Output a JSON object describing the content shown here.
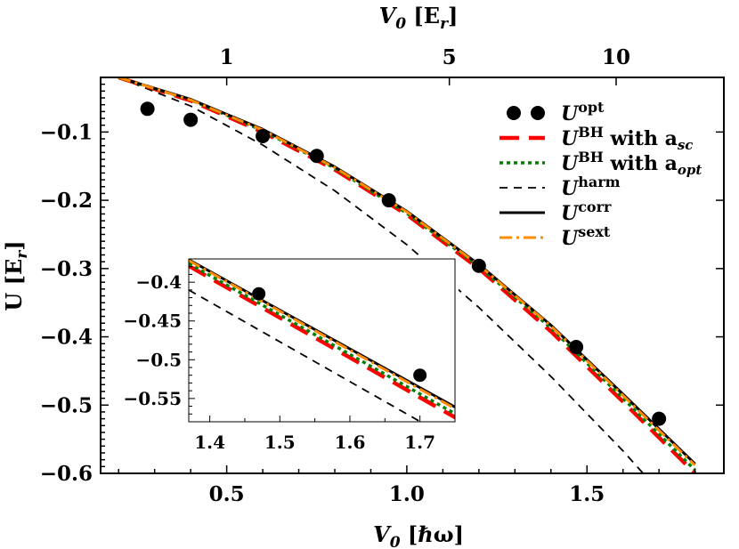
{
  "colors": {
    "opt": "#000000",
    "bh_sc": "#ff0000",
    "bh_opt": "#008000",
    "harm": "#000000",
    "corr": "#000000",
    "sext": "#ff8c00"
  },
  "chart_data": {
    "type": "line",
    "xlabel": {
      "main": "V",
      "sub": "0",
      "unit": "[ℏω]"
    },
    "ylabel": {
      "main": "U",
      "unit": "[E",
      "unit_sub": "r",
      "close": "]"
    },
    "top_xlabel": {
      "main": "V",
      "sub": "0",
      "unit": "[E",
      "unit_sub": "r",
      "close": "]"
    },
    "xlim": [
      0.15,
      1.88
    ],
    "ylim": [
      -0.6,
      -0.02
    ],
    "xticks": [
      0.5,
      1.0,
      1.5
    ],
    "xtick_labels": [
      "0.5",
      "1.0",
      "1.5"
    ],
    "yticks": [
      -0.1,
      -0.2,
      -0.3,
      -0.4,
      -0.5,
      -0.6
    ],
    "ytick_labels": [
      "−0.1",
      "−0.2",
      "−0.3",
      "−0.4",
      "−0.5",
      "−0.6"
    ],
    "top_ticks": [
      {
        "x": 0.5,
        "label": "1"
      },
      {
        "x": 1.118,
        "label": "5"
      },
      {
        "x": 1.581,
        "label": "10"
      }
    ],
    "legend_position": "top-right",
    "series": [
      {
        "name": "opt",
        "legend": {
          "main": "U",
          "sup": "opt",
          "mid": "",
          "sub": ""
        },
        "style": "markers",
        "x": [
          0.28,
          0.4,
          0.6,
          0.75,
          0.95,
          1.2,
          1.47,
          1.7
        ],
        "y": [
          -0.066,
          -0.082,
          -0.106,
          -0.135,
          -0.2,
          -0.296,
          -0.415,
          -0.52
        ]
      },
      {
        "name": "bh_sc",
        "legend": {
          "main": "U",
          "sup": "BH",
          "mid": " with a",
          "sub": "sc"
        },
        "style": "long-dash",
        "x": [
          0.2,
          0.4,
          0.6,
          0.8,
          1.0,
          1.2,
          1.4,
          1.6,
          1.8
        ],
        "y": [
          -0.02,
          -0.054,
          -0.1,
          -0.155,
          -0.221,
          -0.3,
          -0.392,
          -0.495,
          -0.6
        ]
      },
      {
        "name": "bh_opt",
        "legend": {
          "main": "U",
          "sup": "BH",
          "mid": " with a",
          "sub": "opt"
        },
        "style": "dotted",
        "x": [
          0.2,
          0.4,
          0.6,
          0.8,
          1.0,
          1.2,
          1.4,
          1.6,
          1.8
        ],
        "y": [
          -0.02,
          -0.053,
          -0.098,
          -0.153,
          -0.219,
          -0.297,
          -0.387,
          -0.49,
          -0.595
        ]
      },
      {
        "name": "harm",
        "legend": {
          "main": "U",
          "sup": "harm",
          "mid": "",
          "sub": ""
        },
        "style": "dashed",
        "x": [
          0.2,
          0.4,
          0.6,
          0.8,
          1.0,
          1.2,
          1.4,
          1.6,
          1.8
        ],
        "y": [
          -0.02,
          -0.062,
          -0.119,
          -0.186,
          -0.265,
          -0.357,
          -0.458,
          -0.567,
          -0.685
        ]
      },
      {
        "name": "corr",
        "legend": {
          "main": "U",
          "sup": "corr",
          "mid": "",
          "sub": ""
        },
        "style": "solid",
        "x": [
          0.2,
          0.4,
          0.6,
          0.8,
          1.0,
          1.2,
          1.4,
          1.6,
          1.8
        ],
        "y": [
          -0.02,
          -0.052,
          -0.096,
          -0.151,
          -0.216,
          -0.294,
          -0.383,
          -0.484,
          -0.586
        ]
      },
      {
        "name": "sext",
        "legend": {
          "main": "U",
          "sup": "sext",
          "mid": "",
          "sub": ""
        },
        "style": "dash-dot",
        "x": [
          0.2,
          0.4,
          0.6,
          0.8,
          1.0,
          1.2,
          1.4,
          1.6,
          1.8
        ],
        "y": [
          -0.02,
          -0.053,
          -0.097,
          -0.152,
          -0.217,
          -0.295,
          -0.384,
          -0.486,
          -0.588
        ]
      }
    ],
    "inset": {
      "xlim": [
        1.37,
        1.75
      ],
      "ylim": [
        -0.58,
        -0.37
      ],
      "xticks": [
        1.4,
        1.5,
        1.6,
        1.7
      ],
      "xtick_labels": [
        "1.4",
        "1.5",
        "1.6",
        "1.7"
      ],
      "yticks": [
        -0.4,
        -0.45,
        -0.5,
        -0.55
      ],
      "ytick_labels": [
        "−0.4",
        "−0.45",
        "−0.5",
        "−0.55"
      ],
      "series": [
        {
          "name": "opt",
          "x": [
            1.47,
            1.7
          ],
          "y": [
            -0.415,
            -0.52
          ]
        },
        {
          "name": "harm",
          "x": [
            1.37,
            1.8
          ],
          "y": [
            -0.41,
            -0.631
          ]
        },
        {
          "name": "bh_sc",
          "x": [
            1.37,
            1.8
          ],
          "y": [
            -0.379,
            -0.6
          ]
        },
        {
          "name": "bh_opt",
          "x": [
            1.37,
            1.8
          ],
          "y": [
            -0.376,
            -0.595
          ]
        },
        {
          "name": "corr",
          "x": [
            1.37,
            1.8
          ],
          "y": [
            -0.371,
            -0.586
          ]
        },
        {
          "name": "sext",
          "x": [
            1.37,
            1.8
          ],
          "y": [
            -0.372,
            -0.588
          ]
        }
      ]
    }
  }
}
